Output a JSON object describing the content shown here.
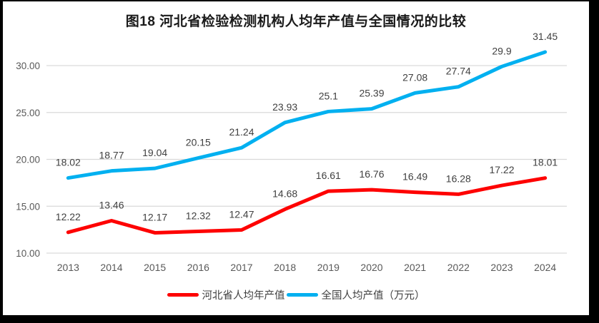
{
  "title": "图18  河北省检验检测机构人均年产值与全国情况的比较",
  "chart_data": {
    "type": "line",
    "title": "图18  河北省检验检测机构人均年产值与全国情况的比较",
    "categories": [
      "2013",
      "2014",
      "2015",
      "2016",
      "2017",
      "2018",
      "2019",
      "2020",
      "2021",
      "2022",
      "2023",
      "2024"
    ],
    "series": [
      {
        "name": "河北省人均年产值",
        "color": "#fe0000",
        "values": [
          12.22,
          13.46,
          12.17,
          12.32,
          12.47,
          14.68,
          16.61,
          16.76,
          16.49,
          16.28,
          17.22,
          18.01
        ]
      },
      {
        "name": "全国人均产值（万元）",
        "color": "#00b0f0",
        "values": [
          18.02,
          18.77,
          19.04,
          20.15,
          21.24,
          23.93,
          25.1,
          25.39,
          27.08,
          27.74,
          29.9,
          31.45
        ]
      }
    ],
    "xlabel": "",
    "ylabel": "",
    "ylim": [
      10,
      30
    ],
    "yticks": [
      "10.00",
      "15.00",
      "20.00",
      "25.00",
      "30.00"
    ],
    "grid": true,
    "data_labels": true,
    "legend_position": "bottom"
  },
  "style_colors": {
    "gridline": "#d9d9d9",
    "axis_label": "#595959",
    "data_label": "#404040",
    "frame_border": "#000000"
  }
}
